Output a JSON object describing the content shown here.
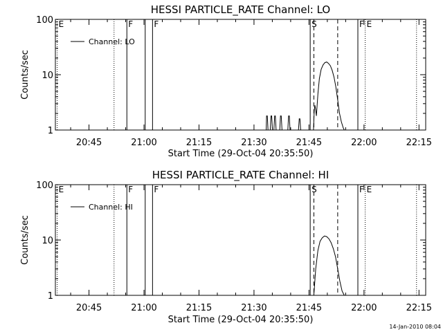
{
  "x_axis": {
    "label": "Start Time (29-Oct-04 20:35:50)",
    "ticks": [
      "20:45",
      "21:00",
      "21:15",
      "21:30",
      "21:45",
      "22:00",
      "22:15"
    ]
  },
  "stamp": "14-Jan-2010 08:04",
  "chart_data": [
    {
      "type": "line",
      "title": "HESSI PARTICLE_RATE Channel: LO",
      "xlabel": "Start Time (29-Oct-04 20:35:50)",
      "ylabel": "Counts/sec",
      "x_unit": "minutes after 20:35:50",
      "xlim": [
        0,
        101
      ],
      "ylim": [
        1,
        100
      ],
      "y_scale": "log",
      "y_ticks": [
        1,
        10,
        100
      ],
      "y_tick_labels": [
        "1",
        "10",
        "100"
      ],
      "legend": {
        "position": "top-left",
        "entries": [
          "Channel: LO"
        ]
      },
      "series": [
        {
          "name": "Channel: LO",
          "x": [
            57.5,
            57.6,
            57.8,
            58.0,
            58.6,
            58.8,
            59.0,
            59.2,
            59.6,
            59.8,
            60.0,
            60.2,
            61.2,
            61.4,
            61.6,
            61.8,
            63.4,
            63.6,
            63.8,
            64.0,
            66.3,
            66.5,
            66.7,
            66.9,
            70.4,
            70.6,
            70.8,
            71.0,
            71.2,
            71.6,
            72.0,
            72.5,
            73.0,
            73.5,
            74.0,
            74.5,
            75.0,
            75.5,
            76.0,
            76.5,
            77.0,
            77.5,
            78.0,
            78.5,
            78.8
          ],
          "y": [
            1,
            1.8,
            1.8,
            1,
            1,
            1.8,
            1.8,
            1,
            1,
            1.8,
            1.8,
            1,
            1,
            1.8,
            1.8,
            1,
            1,
            1.8,
            1.8,
            1,
            1,
            1.6,
            1.6,
            1,
            1,
            2.3,
            2.8,
            2.3,
            1.8,
            4.5,
            8.5,
            12.5,
            15,
            16.5,
            17,
            16,
            14.5,
            12,
            9,
            6,
            3.5,
            2,
            1.4,
            1.1,
            1
          ]
        }
      ],
      "markers": [
        {
          "label": "E",
          "x": 0.5,
          "style": "dotted"
        },
        {
          "label": "",
          "x": 16.0,
          "style": "dotted"
        },
        {
          "label": "F",
          "x": 19.5,
          "style": "solid"
        },
        {
          "label": "",
          "x": 24.5,
          "style": "solid"
        },
        {
          "label": "F",
          "x": 26.5,
          "style": "solid"
        },
        {
          "label": "S",
          "x": 69.5,
          "style": "solid"
        },
        {
          "label": "",
          "x": 70.5,
          "style": "dashed"
        },
        {
          "label": "",
          "x": 77.0,
          "style": "dashed"
        },
        {
          "label": "F",
          "x": 82.5,
          "style": "solid"
        },
        {
          "label": "E",
          "x": 84.5,
          "style": "dotted"
        },
        {
          "label": "",
          "x": 98.5,
          "style": "dotted"
        }
      ]
    },
    {
      "type": "line",
      "title": "HESSI PARTICLE_RATE Channel: HI",
      "xlabel": "Start Time (29-Oct-04 20:35:50)",
      "ylabel": "Counts/sec",
      "x_unit": "minutes after 20:35:50",
      "xlim": [
        0,
        101
      ],
      "ylim": [
        1,
        100
      ],
      "y_scale": "log",
      "y_ticks": [
        1,
        10,
        100
      ],
      "y_tick_labels": [
        "1",
        "10",
        "100"
      ],
      "legend": {
        "position": "top-left",
        "entries": [
          "Channel: HI"
        ]
      },
      "series": [
        {
          "name": "Channel: HI",
          "x": [
            70.5,
            71.0,
            71.6,
            72.2,
            72.8,
            73.4,
            74.0,
            74.6,
            75.2,
            75.8,
            76.4,
            77.0,
            77.6,
            78.2,
            78.8
          ],
          "y": [
            1,
            3,
            6.5,
            9.5,
            11,
            11.8,
            11.5,
            10.5,
            9,
            7,
            5,
            3,
            1.8,
            1.2,
            1
          ]
        }
      ],
      "markers": [
        {
          "label": "E",
          "x": 0.5,
          "style": "dotted"
        },
        {
          "label": "",
          "x": 16.0,
          "style": "dotted"
        },
        {
          "label": "F",
          "x": 19.5,
          "style": "solid"
        },
        {
          "label": "",
          "x": 24.5,
          "style": "solid"
        },
        {
          "label": "F",
          "x": 26.5,
          "style": "solid"
        },
        {
          "label": "S",
          "x": 69.5,
          "style": "solid"
        },
        {
          "label": "",
          "x": 70.5,
          "style": "dashed"
        },
        {
          "label": "",
          "x": 77.0,
          "style": "dashed"
        },
        {
          "label": "F",
          "x": 82.5,
          "style": "solid"
        },
        {
          "label": "E",
          "x": 84.5,
          "style": "dotted"
        },
        {
          "label": "",
          "x": 98.5,
          "style": "dotted"
        }
      ]
    }
  ]
}
